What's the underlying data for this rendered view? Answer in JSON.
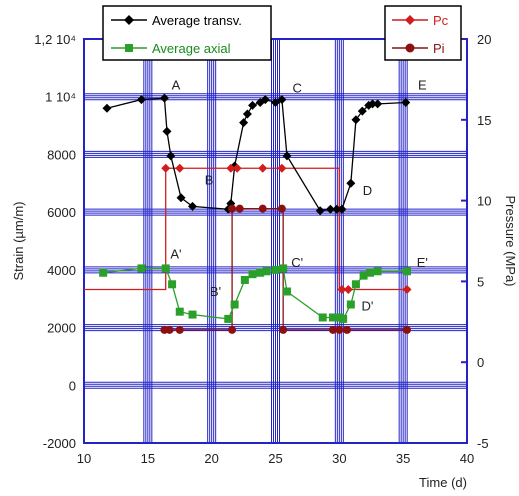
{
  "chart_data": {
    "type": "line",
    "title": "",
    "xlabel": "Time (d)",
    "ylabel_left": "Strain (µm/m)",
    "ylabel_right": "Pressure (MPa)",
    "xlim": [
      10,
      40
    ],
    "ylim_left": [
      -2000,
      12000
    ],
    "ylim_right": [
      -5,
      20
    ],
    "x_ticks": [
      "10",
      "15",
      "20",
      "25",
      "30",
      "35",
      "40"
    ],
    "y_left_ticks": [
      {
        "value": -2000,
        "label": "-2000"
      },
      {
        "value": 0,
        "label": "0"
      },
      {
        "value": 2000,
        "label": "2000"
      },
      {
        "value": 4000,
        "label": "4000"
      },
      {
        "value": 6000,
        "label": "6000"
      },
      {
        "value": 8000,
        "label": "8000"
      },
      {
        "value": 10000,
        "label": "1 10⁴"
      },
      {
        "value": 12000,
        "label": "1,2 10⁴"
      }
    ],
    "y_right_ticks": [
      "-5",
      "0",
      "5",
      "10",
      "15",
      "20"
    ],
    "grid": true,
    "grid_color": "#2323c8",
    "series": [
      {
        "name": "Average transv.",
        "axis": "left",
        "color": "#000000",
        "marker": "diamond",
        "x": [
          11.8,
          14.5,
          16.3,
          16.5,
          16.8,
          17.6,
          18.5,
          21.3,
          21.5,
          21.8,
          22.5,
          22.8,
          23.2,
          23.8,
          24.2,
          25.0,
          25.5,
          25.9,
          28.5,
          29.3,
          29.8,
          30.2,
          30.9,
          31.3,
          31.8,
          32.3,
          32.6,
          33.0,
          35.2
        ],
        "y": [
          9600,
          9900,
          9950,
          8800,
          7950,
          6500,
          6200,
          6100,
          6300,
          7600,
          9100,
          9400,
          9700,
          9800,
          9900,
          9800,
          9900,
          7950,
          6050,
          6100,
          6100,
          6100,
          7000,
          9200,
          9500,
          9700,
          9750,
          9750,
          9800
        ]
      },
      {
        "name": "Average axial",
        "axis": "left",
        "color": "#2aa02a",
        "marker": "square",
        "x": [
          11.5,
          14.5,
          16.4,
          16.9,
          17.5,
          18.5,
          21.3,
          21.8,
          22.6,
          23.2,
          23.8,
          24.3,
          25.0,
          25.6,
          25.9,
          28.7,
          29.5,
          30.0,
          30.3,
          30.9,
          31.3,
          31.9,
          32.4,
          33.0,
          35.3
        ],
        "y": [
          3900,
          4050,
          4050,
          3500,
          2550,
          2450,
          2300,
          2800,
          3650,
          3850,
          3900,
          3950,
          4000,
          4050,
          3250,
          2350,
          2350,
          2350,
          2300,
          2800,
          3500,
          3800,
          3900,
          3950,
          3950
        ]
      },
      {
        "name": "Pc",
        "axis": "right",
        "color": "#d11d1d",
        "marker": "diamond",
        "x": [
          16.4,
          17.5,
          21.5,
          22.0,
          24.0,
          25.5,
          30.2,
          30.7,
          35.3
        ],
        "y": [
          12,
          12,
          12,
          12,
          12,
          12,
          4.5,
          4.5,
          4.5
        ]
      },
      {
        "name": "Pi",
        "axis": "right",
        "color": "#8b1010",
        "marker": "circle",
        "x": [
          16.3,
          16.7,
          17.5,
          21.6,
          21.6,
          22.2,
          24.0,
          25.5,
          25.6,
          29.5,
          30.0,
          30.6,
          35.3
        ],
        "y": [
          2,
          2,
          2,
          2,
          9.5,
          9.5,
          9.5,
          9.5,
          2,
          2,
          2,
          2,
          2
        ]
      }
    ],
    "steps": [
      {
        "series": "Pc",
        "x": [
          10,
          16.4,
          16.4,
          25.7,
          25.7,
          30.0,
          30.0,
          35.3
        ],
        "y": [
          4.5,
          4.5,
          12,
          12,
          12,
          12,
          4.5,
          4.5
        ]
      },
      {
        "series": "Pi",
        "x": [
          16.3,
          21.6,
          21.6,
          25.6,
          25.6,
          35.3
        ],
        "y": [
          2,
          2,
          9.5,
          9.5,
          2,
          2
        ]
      }
    ],
    "annotations": [
      {
        "text": "A",
        "x": 17.2,
        "y": 10250
      },
      {
        "text": "B",
        "x": 19.8,
        "y": 6950
      },
      {
        "text": "C",
        "x": 26.7,
        "y": 10150
      },
      {
        "text": "D",
        "x": 32.2,
        "y": 6600
      },
      {
        "text": "E",
        "x": 36.5,
        "y": 10250
      },
      {
        "text": "A'",
        "x": 17.2,
        "y": 4400
      },
      {
        "text": "B'",
        "x": 20.3,
        "y": 3100
      },
      {
        "text": "C'",
        "x": 26.7,
        "y": 4100
      },
      {
        "text": "D'",
        "x": 32.2,
        "y": 2600
      },
      {
        "text": "E'",
        "x": 36.5,
        "y": 4100
      }
    ],
    "legend_left_position": "top-left",
    "legend_right_position": "top-right"
  }
}
